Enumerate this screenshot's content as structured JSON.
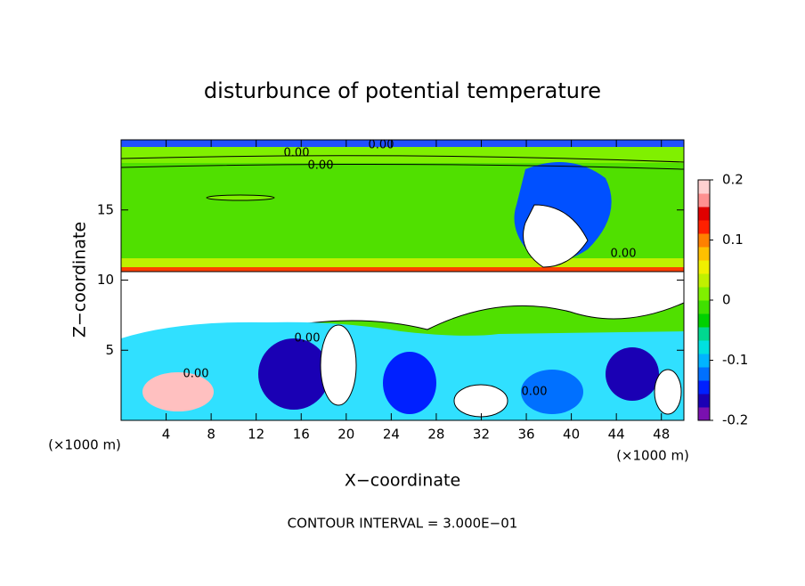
{
  "chart_data": {
    "type": "contour",
    "title": "disturbunce of potential temperature",
    "x_label": "X−coordinate",
    "y_label": "Z−coordinate",
    "x_unit_left": "(×1000 m)",
    "x_unit_right": "(×1000 m)",
    "footnote": "CONTOUR INTERVAL = 3.000E−01",
    "xlim": [
      0,
      50
    ],
    "xticks": [
      4,
      8,
      12,
      16,
      20,
      24,
      28,
      32,
      36,
      40,
      44,
      48
    ],
    "ylim": [
      0,
      20
    ],
    "yticks": [
      5,
      10,
      15
    ],
    "contour_labels": [
      "0.00",
      "0.00",
      "0.00",
      "0.00",
      "0.00",
      "0.00",
      "0.00"
    ],
    "colorbar": {
      "lim": [
        -0.2,
        0.2
      ],
      "ticks": [
        0.2,
        0.1,
        0,
        -0.1,
        -0.2
      ],
      "colors": [
        "#7a10b0",
        "#1a00b4",
        "#0020ff",
        "#0070ff",
        "#00b4ff",
        "#00e0e0",
        "#00d890",
        "#00d000",
        "#40e000",
        "#80f000",
        "#c0f000",
        "#f0f000",
        "#ffc000",
        "#ff8000",
        "#ff2000",
        "#e00000",
        "#ff9090",
        "#ffd0d0"
      ]
    }
  }
}
